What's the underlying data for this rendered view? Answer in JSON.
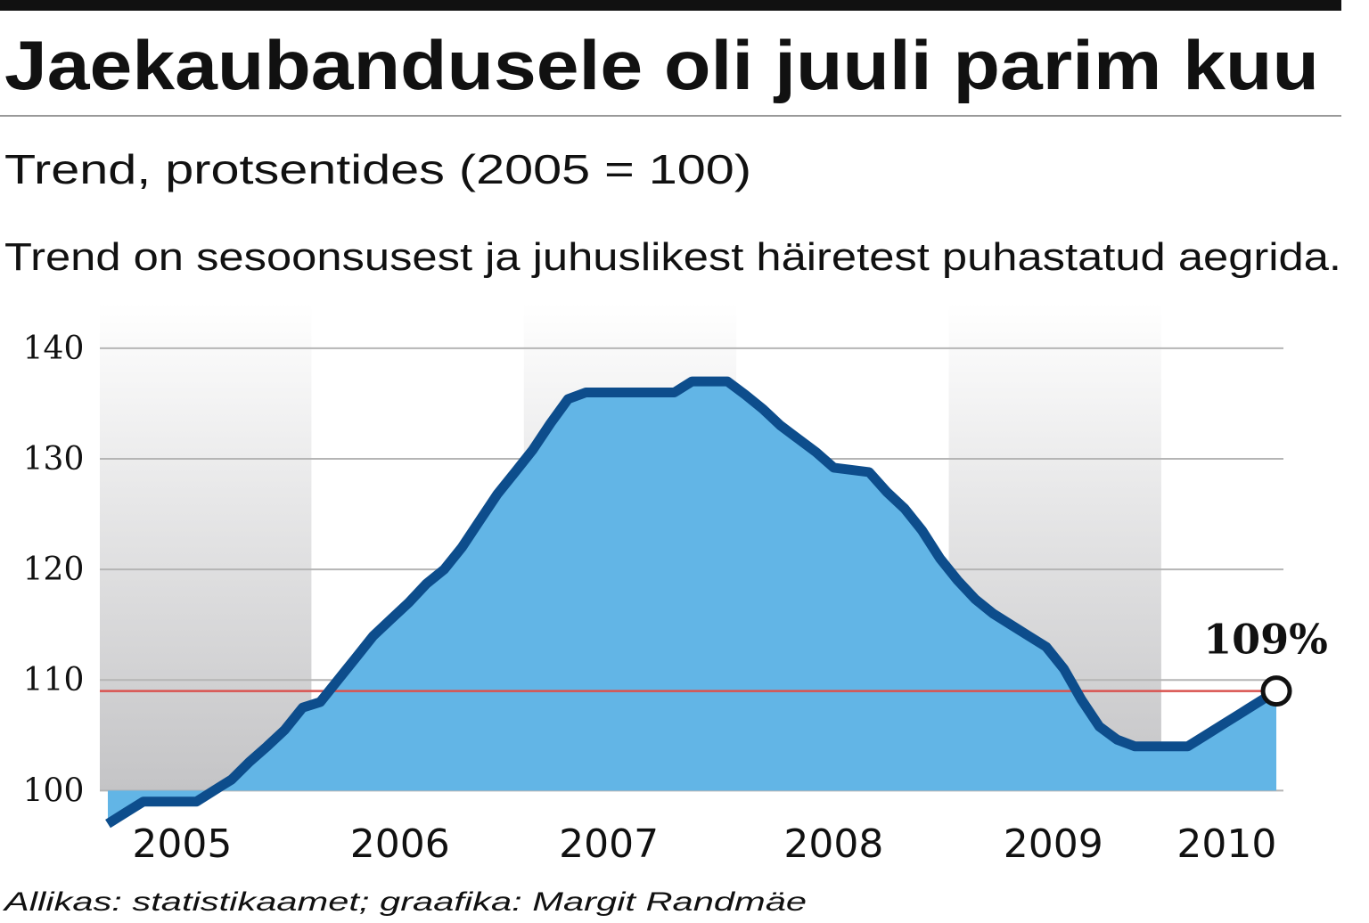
{
  "chart_data": {
    "type": "area",
    "title": "Jaekaubandusele oli juuli parim kuu",
    "subtitle": "Trend, protsentides (2005 = 100)",
    "note": "Trend on sesoonsusest ja juhuslikest häiretest puhastatud aegrida.",
    "source": "Allikas: statistikaamet; graafika: Margit Randmäe",
    "annotation": "109%",
    "reference_line": 109,
    "categories": [
      null,
      null,
      null,
      null,
      null,
      null,
      null,
      null,
      null,
      null,
      null,
      null,
      null,
      null,
      null,
      null,
      null,
      null,
      null,
      null,
      null,
      null,
      null,
      null,
      null,
      null,
      null,
      null,
      null,
      null,
      null,
      null,
      null,
      null,
      null,
      null,
      null,
      null,
      null,
      null,
      null,
      null,
      null,
      null,
      null,
      null,
      null,
      null,
      null,
      null,
      null,
      null,
      null,
      null,
      null,
      null,
      null,
      null,
      null,
      null,
      null,
      null,
      null,
      null,
      null,
      null,
      null
    ],
    "values": [
      97,
      98,
      99,
      99,
      99,
      99,
      100,
      101,
      102.6,
      104,
      105.5,
      107.5,
      108,
      110,
      112,
      114,
      115.5,
      117,
      118.7,
      120,
      122,
      124.4,
      126.8,
      128.8,
      130.8,
      133.2,
      135.4,
      136,
      136,
      136,
      136,
      136,
      136,
      137,
      137,
      137,
      135.8,
      134.5,
      133,
      131.8,
      130.6,
      129.2,
      129,
      128.8,
      127,
      125.5,
      123.5,
      121,
      119,
      117.3,
      116,
      115,
      114,
      113,
      111,
      108.2,
      105.8,
      104.6,
      104,
      104,
      104,
      104,
      105,
      106,
      107,
      108,
      109
    ],
    "color": "#62b5e6",
    "line_color": "#0d4d8c",
    "reference_color": "#d9534f",
    "xlim": [
      -0.3,
      66.3
    ],
    "xticks": [
      {
        "value": 4.2,
        "label": "2005"
      },
      {
        "value": 16.5,
        "label": "2006"
      },
      {
        "value": 28.3,
        "label": "2007"
      },
      {
        "value": 41,
        "label": "2008"
      },
      {
        "value": 53.4,
        "label": "2009"
      },
      {
        "value": 63.2,
        "label": "2010"
      }
    ],
    "ylim": [
      96,
      142
    ],
    "yticks": [
      100,
      110,
      120,
      130,
      140
    ],
    "grid": true
  }
}
